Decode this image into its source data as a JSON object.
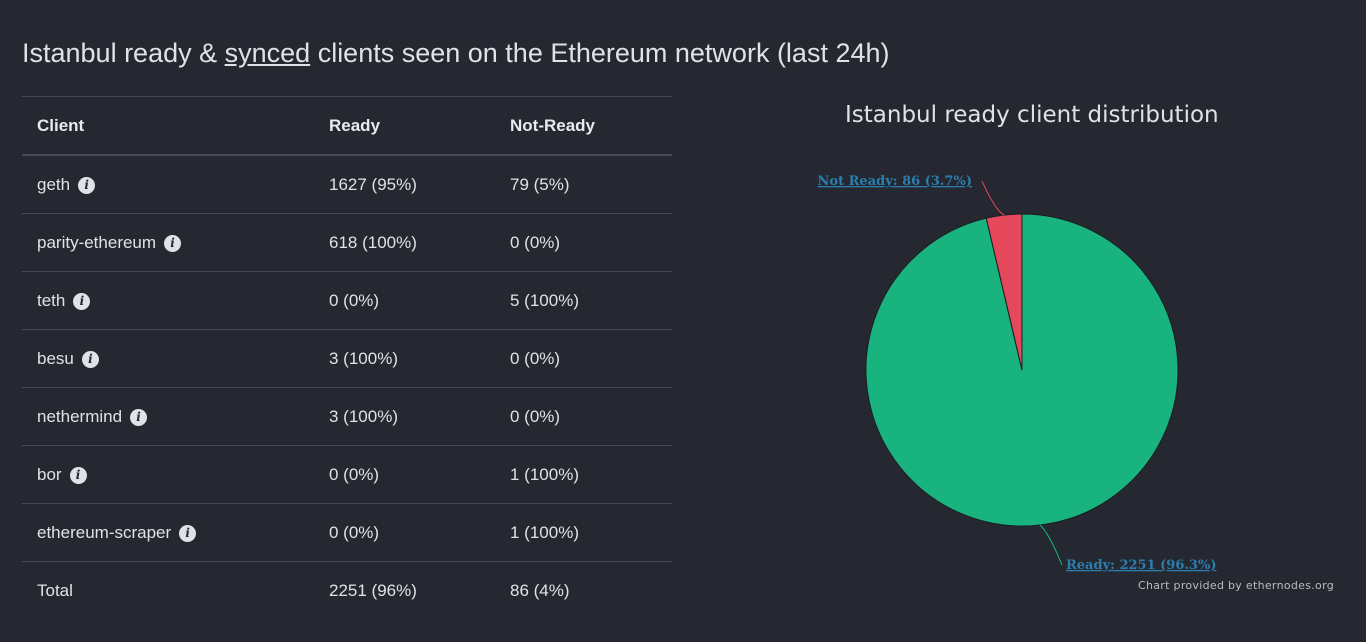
{
  "heading": {
    "prefix": "Istanbul ready & ",
    "link": "synced",
    "suffix": " clients seen on the Ethereum network (last 24h)"
  },
  "table": {
    "headers": [
      "Client",
      "Ready",
      "Not-Ready"
    ],
    "rows": [
      {
        "client": "geth",
        "ready": "1627 (95%)",
        "not_ready": "79 (5%)"
      },
      {
        "client": "parity-ethereum",
        "ready": "618 (100%)",
        "not_ready": "0 (0%)"
      },
      {
        "client": "teth",
        "ready": "0 (0%)",
        "not_ready": "5 (100%)"
      },
      {
        "client": "besu",
        "ready": "3 (100%)",
        "not_ready": "0 (0%)"
      },
      {
        "client": "nethermind",
        "ready": "3 (100%)",
        "not_ready": "0 (0%)"
      },
      {
        "client": "bor",
        "ready": "0 (0%)",
        "not_ready": "1 (100%)"
      },
      {
        "client": "ethereum-scraper",
        "ready": "0 (0%)",
        "not_ready": "1 (100%)"
      }
    ],
    "total": {
      "client": "Total",
      "ready": "2251 (96%)",
      "not_ready": "86 (4%)"
    },
    "info_icon_glyph": "i"
  },
  "chart_data": {
    "type": "pie",
    "title": "Istanbul ready client distribution",
    "slices": [
      {
        "name": "Ready",
        "value": 2251,
        "percent": 96.3,
        "label": "Ready: 2251 (96.3%)",
        "color": "#19b37f"
      },
      {
        "name": "Not Ready",
        "value": 86,
        "percent": 3.7,
        "label": "Not Ready: 86 (3.7%)",
        "color": "#e5475b"
      }
    ]
  },
  "credit": "Chart provided by ethernodes.org",
  "colors": {
    "background": "#252830",
    "text": "#dfe2e6",
    "border": "#464a53",
    "label_link": "#2a7fb0"
  }
}
